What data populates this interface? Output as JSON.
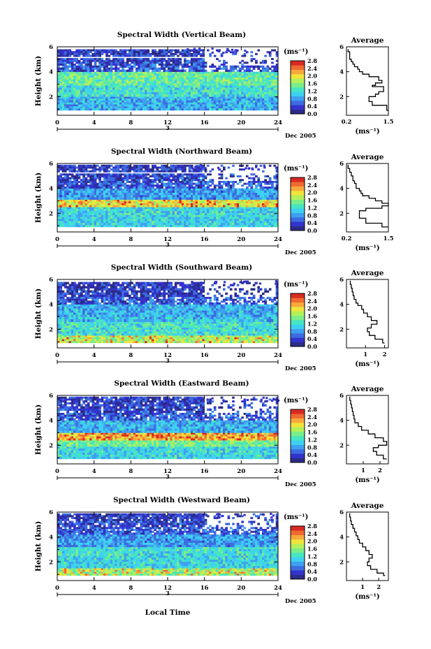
{
  "figure": {
    "xlabel": "Local Time",
    "date_label": "Dec 2005",
    "day_label": "3",
    "ylabel": "Height (km)",
    "units": "(ms⁻¹)",
    "avg_title": "Average"
  },
  "colormap": [
    "#2b2b88",
    "#3333cc",
    "#3c6ce0",
    "#3fa0f0",
    "#3ed0f0",
    "#46e6c0",
    "#7aee8a",
    "#b4f05a",
    "#f0e43c",
    "#f6a83a",
    "#f06a30",
    "#d82a22"
  ],
  "chart_data": [
    {
      "type": "heatmap",
      "title": "Spectral Width (Vertical Beam)",
      "x": [
        0,
        4,
        8,
        12,
        16,
        20,
        24
      ],
      "xlim": [
        0,
        24
      ],
      "ylim": [
        0.5,
        6
      ],
      "yticks": [
        2,
        4,
        6
      ],
      "colorbar": {
        "ticks": [
          "0.0",
          "0.4",
          "0.8",
          "1.2",
          "1.6",
          "2.0",
          "2.4",
          "2.8"
        ],
        "range": [
          0,
          2.8
        ]
      },
      "layers": [
        {
          "y": [
            0.9,
            2.0
          ],
          "value": 0.9
        },
        {
          "y": [
            2.0,
            2.9
          ],
          "value": 1.2
        },
        {
          "y": [
            2.9,
            4.0
          ],
          "value": 1.4
        },
        {
          "y": [
            4.0,
            4.5
          ],
          "value": 0.5
        },
        {
          "y": [
            4.5,
            5.1
          ],
          "value": 0.4
        },
        {
          "y": [
            5.2,
            5.8
          ],
          "value": 0.35
        }
      ],
      "average": {
        "x": [
          0.25,
          0.3,
          0.3,
          0.35,
          0.4,
          0.45,
          0.55,
          0.6,
          0.7,
          0.9,
          1.2,
          1.3,
          1.1,
          1.0,
          1.35,
          1.35,
          1.2,
          1.1,
          0.9,
          0.9,
          1.0,
          1.45,
          1.6
        ],
        "y": [
          5.8,
          5.6,
          5.3,
          5.0,
          4.8,
          4.6,
          4.4,
          4.2,
          4.0,
          3.8,
          3.6,
          3.3,
          3.1,
          2.9,
          2.8,
          2.6,
          2.4,
          2.2,
          2.0,
          1.8,
          1.6,
          1.3,
          0.9
        ],
        "xticks": [
          "0.2",
          "1.5"
        ],
        "xlim": [
          0.2,
          1.5
        ],
        "xtick_values": [
          0.2,
          1.5
        ],
        "ylim": [
          0.5,
          6
        ],
        "yticks": [
          2,
          4,
          6
        ]
      }
    },
    {
      "type": "heatmap",
      "title": "Spectral Width (Northward Beam)",
      "x": [
        0,
        4,
        8,
        12,
        16,
        20,
        24
      ],
      "xlim": [
        0,
        24
      ],
      "ylim": [
        0.5,
        6
      ],
      "yticks": [
        2,
        4,
        6
      ],
      "colorbar": {
        "ticks": [
          "0.0",
          "0.4",
          "0.8",
          "1.2",
          "1.6",
          "2.0",
          "2.4",
          "2.8"
        ],
        "range": [
          0,
          2.8
        ]
      },
      "layers": [
        {
          "y": [
            0.9,
            2.5
          ],
          "value": 1.1
        },
        {
          "y": [
            2.5,
            3.1
          ],
          "value": 1.9
        },
        {
          "y": [
            3.1,
            4.0
          ],
          "value": 0.8
        },
        {
          "y": [
            4.0,
            4.6
          ],
          "value": 0.5
        },
        {
          "y": [
            4.6,
            5.2
          ],
          "value": 0.4
        },
        {
          "y": [
            5.3,
            5.9
          ],
          "value": 0.35
        }
      ],
      "average": {
        "x": [
          0.25,
          0.3,
          0.35,
          0.4,
          0.45,
          0.5,
          0.6,
          0.65,
          0.7,
          0.9,
          1.1,
          1.3,
          1.5,
          1.3,
          0.8,
          0.6,
          0.6,
          0.8,
          1.3,
          1.5
        ],
        "y": [
          5.9,
          5.6,
          5.3,
          5.0,
          4.6,
          4.4,
          4.0,
          3.8,
          3.6,
          3.4,
          3.2,
          3.0,
          2.8,
          2.6,
          2.4,
          2.2,
          1.9,
          1.6,
          1.2,
          0.9
        ],
        "xticks": [
          "0.2",
          "1.5"
        ],
        "xlim": [
          0.2,
          1.5
        ],
        "xtick_values": [
          0.2,
          1.5
        ],
        "ylim": [
          0.5,
          6
        ],
        "yticks": [
          2,
          4,
          6
        ]
      }
    },
    {
      "type": "heatmap",
      "title": "Spectral Width (Southward Beam)",
      "x": [
        0,
        4,
        8,
        12,
        16,
        20,
        24
      ],
      "xlim": [
        0,
        24
      ],
      "ylim": [
        0.5,
        6
      ],
      "yticks": [
        2,
        4,
        6
      ],
      "colorbar": {
        "ticks": [
          "0.0",
          "0.4",
          "0.8",
          "1.2",
          "1.6",
          "2.0",
          "2.4",
          "2.8"
        ],
        "range": [
          0,
          2.8
        ]
      },
      "layers": [
        {
          "y": [
            0.9,
            1.5
          ],
          "value": 1.7
        },
        {
          "y": [
            1.5,
            2.6
          ],
          "value": 1.2
        },
        {
          "y": [
            2.6,
            3.0
          ],
          "value": 1.0
        },
        {
          "y": [
            3.0,
            4.0
          ],
          "value": 0.9
        },
        {
          "y": [
            4.0,
            4.6
          ],
          "value": 0.5
        },
        {
          "y": [
            4.6,
            5.3
          ],
          "value": 0.35
        },
        {
          "y": [
            5.3,
            5.8
          ],
          "value": 0.3
        }
      ],
      "average": {
        "x": [
          0.2,
          0.25,
          0.3,
          0.35,
          0.4,
          0.5,
          0.6,
          0.8,
          0.9,
          1.1,
          1.3,
          1.6,
          1.3,
          1.1,
          1.2,
          1.5,
          1.9,
          2.0
        ],
        "y": [
          5.9,
          5.6,
          5.3,
          5.0,
          4.7,
          4.4,
          4.1,
          3.9,
          3.6,
          3.3,
          3.0,
          2.7,
          2.4,
          2.1,
          1.8,
          1.5,
          1.2,
          0.9
        ],
        "xticks": [
          "1",
          "2"
        ],
        "xlim": [
          0,
          2.2
        ],
        "xtick_values": [
          1,
          2
        ],
        "ylim": [
          0.5,
          6
        ],
        "yticks": [
          2,
          4,
          6
        ]
      }
    },
    {
      "type": "heatmap",
      "title": "Spectral Width (Eastward Beam)",
      "x": [
        0,
        4,
        8,
        12,
        16,
        20,
        24
      ],
      "xlim": [
        0,
        24
      ],
      "ylim": [
        0.5,
        6
      ],
      "yticks": [
        2,
        4,
        6
      ],
      "colorbar": {
        "ticks": [
          "0.0",
          "0.4",
          "0.8",
          "1.2",
          "1.6",
          "2.0",
          "2.4",
          "2.8"
        ],
        "range": [
          0,
          2.8
        ]
      },
      "layers": [
        {
          "y": [
            0.9,
            1.9
          ],
          "value": 1.1
        },
        {
          "y": [
            1.9,
            2.4
          ],
          "value": 1.5
        },
        {
          "y": [
            2.4,
            3.0
          ],
          "value": 2.1
        },
        {
          "y": [
            3.0,
            4.0
          ],
          "value": 0.9
        },
        {
          "y": [
            4.0,
            4.6
          ],
          "value": 0.5
        },
        {
          "y": [
            4.6,
            5.3
          ],
          "value": 0.4
        },
        {
          "y": [
            5.3,
            5.9
          ],
          "value": 0.35
        }
      ],
      "average": {
        "x": [
          0.2,
          0.25,
          0.3,
          0.35,
          0.4,
          0.45,
          0.5,
          0.7,
          0.9,
          1.3,
          1.7,
          2.2,
          2.4,
          1.9,
          1.6,
          1.8,
          2.2,
          2.4
        ],
        "y": [
          5.9,
          5.6,
          5.3,
          5.0,
          4.7,
          4.4,
          4.1,
          3.8,
          3.5,
          3.2,
          2.9,
          2.6,
          2.3,
          2.0,
          1.8,
          1.5,
          1.2,
          0.9
        ],
        "xticks": [
          "1",
          "2"
        ],
        "xlim": [
          0,
          2.5
        ],
        "xtick_values": [
          1,
          2
        ],
        "ylim": [
          0.5,
          6
        ],
        "yticks": [
          2,
          4,
          6
        ]
      }
    },
    {
      "type": "heatmap",
      "title": "Spectral Width (Westward Beam)",
      "x": [
        0,
        4,
        8,
        12,
        16,
        20,
        24
      ],
      "xlim": [
        0,
        24
      ],
      "ylim": [
        0.5,
        6
      ],
      "yticks": [
        2,
        4,
        6
      ],
      "colorbar": {
        "ticks": [
          "0.0",
          "0.4",
          "0.8",
          "1.2",
          "1.6",
          "2.0",
          "2.4",
          "2.8"
        ],
        "range": [
          0,
          2.8
        ]
      },
      "layers": [
        {
          "y": [
            0.9,
            1.5
          ],
          "value": 1.6
        },
        {
          "y": [
            1.5,
            2.5
          ],
          "value": 1.1
        },
        {
          "y": [
            2.5,
            3.2
          ],
          "value": 1.2
        },
        {
          "y": [
            3.2,
            4.2
          ],
          "value": 0.8
        },
        {
          "y": [
            4.2,
            4.8
          ],
          "value": 0.5
        },
        {
          "y": [
            4.8,
            5.3
          ],
          "value": 0.4
        },
        {
          "y": [
            5.3,
            5.9
          ],
          "value": 0.35
        }
      ],
      "average": {
        "x": [
          0.2,
          0.25,
          0.3,
          0.4,
          0.5,
          0.6,
          0.7,
          0.8,
          1.0,
          1.2,
          1.4,
          1.6,
          1.4,
          1.3,
          1.5,
          1.9,
          2.3,
          2.4
        ],
        "y": [
          5.9,
          5.6,
          5.3,
          5.0,
          4.7,
          4.4,
          4.1,
          3.8,
          3.5,
          3.2,
          2.9,
          2.6,
          2.3,
          2.0,
          1.7,
          1.4,
          1.1,
          0.9
        ],
        "xticks": [
          "1",
          "2"
        ],
        "xlim": [
          0,
          2.6
        ],
        "xtick_values": [
          1,
          2
        ],
        "ylim": [
          0.5,
          6
        ],
        "yticks": [
          2,
          4,
          6
        ]
      }
    }
  ]
}
